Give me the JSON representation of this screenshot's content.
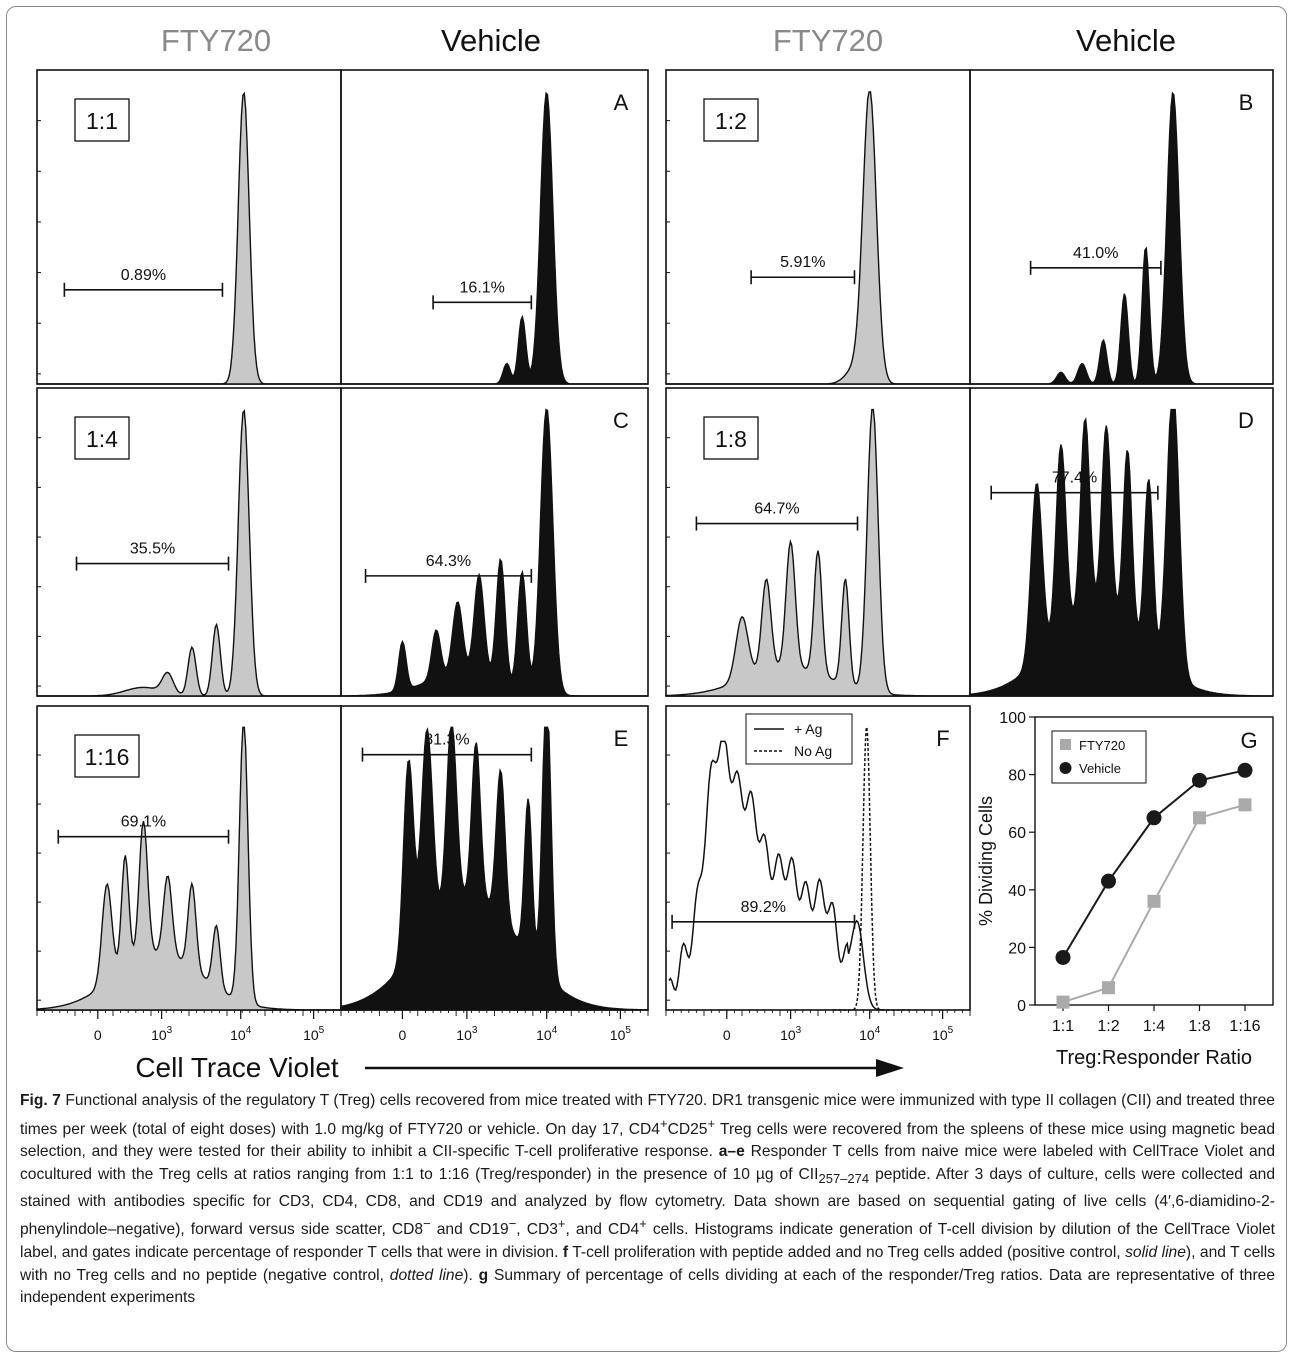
{
  "column_headers": [
    "FTY720",
    "Vehicle",
    "FTY720",
    "Vehicle"
  ],
  "colors": {
    "fty720_fill": "#c8c8c8",
    "vehicle_fill": "#111111",
    "header_fty720": "#8a8a8a",
    "header_vehicle": "#111111",
    "g_fty720": "#aaaaaa",
    "g_vehicle": "#1a1a1a"
  },
  "x_axis": {
    "title": "Cell Trace Violet",
    "ticks": [
      {
        "base": "0",
        "sup": ""
      },
      {
        "base": "10",
        "sup": "3"
      },
      {
        "base": "10",
        "sup": "4"
      },
      {
        "base": "10",
        "sup": "5"
      }
    ]
  },
  "panels": [
    {
      "id": "p-1-1-fty",
      "ratio_label": "1:1",
      "letter": "",
      "gate": "0.89%",
      "treatment": "FTY720"
    },
    {
      "id": "p-1-1-veh",
      "ratio_label": "",
      "letter": "A",
      "gate": "16.1%",
      "treatment": "Vehicle"
    },
    {
      "id": "p-1-2-fty",
      "ratio_label": "1:2",
      "letter": "",
      "gate": "5.91%",
      "treatment": "FTY720"
    },
    {
      "id": "p-1-2-veh",
      "ratio_label": "",
      "letter": "B",
      "gate": "41.0%",
      "treatment": "Vehicle"
    },
    {
      "id": "p-1-4-fty",
      "ratio_label": "1:4",
      "letter": "",
      "gate": "35.5%",
      "treatment": "FTY720"
    },
    {
      "id": "p-1-4-veh",
      "ratio_label": "",
      "letter": "C",
      "gate": "64.3%",
      "treatment": "Vehicle"
    },
    {
      "id": "p-1-8-fty",
      "ratio_label": "1:8",
      "letter": "",
      "gate": "64.7%",
      "treatment": "FTY720"
    },
    {
      "id": "p-1-8-veh",
      "ratio_label": "",
      "letter": "D",
      "gate": "77.4%",
      "treatment": "Vehicle"
    },
    {
      "id": "p-1-16-fty",
      "ratio_label": "1:16",
      "letter": "",
      "gate": "69.1%",
      "treatment": "FTY720"
    },
    {
      "id": "p-1-16-veh",
      "ratio_label": "",
      "letter": "E",
      "gate": "81.3%",
      "treatment": "Vehicle"
    },
    {
      "id": "p-control",
      "ratio_label": "",
      "letter": "F",
      "gate": "89.2%",
      "treatment": "control"
    }
  ],
  "panel_f_legend": {
    "solid": "+ Ag",
    "dotted": "No  Ag"
  },
  "chart_data": {
    "type": "line",
    "letter": "G",
    "categories": [
      "1:1",
      "1:2",
      "1:4",
      "1:8",
      "1:16"
    ],
    "series": [
      {
        "name": "FTY720",
        "values": [
          1,
          6,
          36,
          65,
          69.5
        ]
      },
      {
        "name": "Vehicle",
        "values": [
          16.5,
          43,
          65,
          78,
          81.5
        ]
      }
    ],
    "xlabel": "Treg:Responder Ratio",
    "ylabel": "% Dividing Cells",
    "ylim": [
      0,
      100
    ],
    "yticks": [
      "0",
      "20",
      "40",
      "60",
      "80",
      "100"
    ],
    "legend": "top-left",
    "grid": false
  },
  "caption": {
    "fig_label": "Fig. 7",
    "a": "Functional analysis of the regulatory T (Treg) cells recovered from mice treated with FTY720. DR1 transgenic mice were immunized with type II collagen (CII) and treated three times per week (total of eight doses) with 1.0 mg/kg of FTY720 or vehicle. On day 17, CD4",
    "a_sup1": "+",
    "a2": "CD25",
    "a_sup2": "+",
    "a3": " Treg cells were recovered from the spleens of these mice using magnetic bead selection, and they were tested for their ability to inhibit a CII-specific T-cell proliferative response. ",
    "lbl_ae": "a–e",
    "b": " Responder T cells from naive mice were labeled with CellTrace Violet and cocultured with the Treg cells at ratios ranging from 1:1 to 1:16 (Treg/responder) in the presence of 10 µg of CII",
    "b_sub": "257–274",
    "c": " peptide. After 3 days of culture, cells were collected and stained with antibodies specific for CD3, CD4, CD8, and CD19 and analyzed by flow cytometry. Data shown are based on sequential gating of live cells (4′,6-diamidino-2-phenylindole–negative), forward versus side scatter, CD8",
    "c_sup1": "−",
    "c2": " and CD19",
    "c_sup2": "−",
    "c3": ", CD3",
    "c_sup3": "+",
    "c4": ", and CD4",
    "c_sup4": "+",
    "c5": " cells. Histograms indicate generation of T-cell division by dilution of the CellTrace Violet label, and gates indicate percentage of responder T cells that were in division. ",
    "lbl_f": "f",
    "d": " T-cell proliferation with peptide added and no Treg cells added (positive control, ",
    "d_it1": "solid line",
    "d2": "), and T cells with no Treg cells and no peptide (negative control, ",
    "d_it2": "dotted line",
    "d3": "). ",
    "lbl_g": "g",
    "e": " Summary of percentage of cells dividing at each of the responder/Treg ratios. Data are representative of three independent experiments"
  }
}
